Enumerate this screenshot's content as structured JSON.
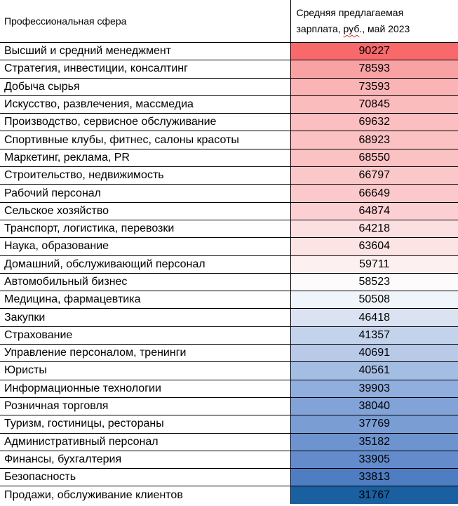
{
  "header": {
    "col1": "Профессиональная сфера",
    "col2_line1": "Средняя предлагаемая",
    "col2_pre": "зарплата, ",
    "col2_spell": "руб",
    "col2_post": "., май 2023"
  },
  "rows": [
    {
      "name": "Высший и средний менеджмент",
      "value": "90227",
      "color": "#f8696b"
    },
    {
      "name": "Стратегия, инвестиции, консалтинг",
      "value": "78593",
      "color": "#f9a2a4"
    },
    {
      "name": "Добыча сырья",
      "value": "73593",
      "color": "#fab4b6"
    },
    {
      "name": "Искусство, развлечения, массмедиа",
      "value": "70845",
      "color": "#fbbcbe"
    },
    {
      "name": "Производство, сервисное обслуживание",
      "value": "69632",
      "color": "#fbbfc1"
    },
    {
      "name": "Спортивные клубы, фитнес, салоны красоты",
      "value": "68923",
      "color": "#fbc1c3"
    },
    {
      "name": "Маркетинг, реклама, PR",
      "value": "68550",
      "color": "#fbc2c4"
    },
    {
      "name": "Строительство, недвижимость",
      "value": "66797",
      "color": "#fbc8ca"
    },
    {
      "name": "Рабочий персонал",
      "value": "66649",
      "color": "#fbc9cb"
    },
    {
      "name": "Сельское хозяйство",
      "value": "64874",
      "color": "#fcd0d2"
    },
    {
      "name": "Транспорт, логистика, перевозки",
      "value": "64218",
      "color": "#fcdfe0"
    },
    {
      "name": "Наука, образование",
      "value": "63604",
      "color": "#fce3e4"
    },
    {
      "name": "Домашний, обслуживающий персонал",
      "value": "59711",
      "color": "#fdf0f1"
    },
    {
      "name": "Автомобильный бизнес",
      "value": "58523",
      "color": "#fdfbfc"
    },
    {
      "name": "Медицина, фармацевтика",
      "value": "50508",
      "color": "#f0f4fb"
    },
    {
      "name": "Закупки",
      "value": "46418",
      "color": "#dbe3f2"
    },
    {
      "name": "Страхование",
      "value": "41357",
      "color": "#c4d3ec"
    },
    {
      "name": "Управление персоналом, тренинги",
      "value": "40691",
      "color": "#b8cae8"
    },
    {
      "name": "Юристы",
      "value": "40561",
      "color": "#a4bde2"
    },
    {
      "name": "Информационные технологии",
      "value": "39903",
      "color": "#90aede"
    },
    {
      "name": "Розничная торговля",
      "value": "38040",
      "color": "#82a3d8"
    },
    {
      "name": "Туризм, гостиницы, рестораны",
      "value": "37769",
      "color": "#7a9dd4"
    },
    {
      "name": "Административный персонал",
      "value": "35182",
      "color": "#6e94cf"
    },
    {
      "name": "Финансы, бухгалтерия",
      "value": "33905",
      "color": "#648bcb"
    },
    {
      "name": "Безопасность",
      "value": "33813",
      "color": "#4e7dc2"
    },
    {
      "name": "Продажи, обслуживание клиентов",
      "value": "31767",
      "color": "#1a5f9f"
    }
  ]
}
